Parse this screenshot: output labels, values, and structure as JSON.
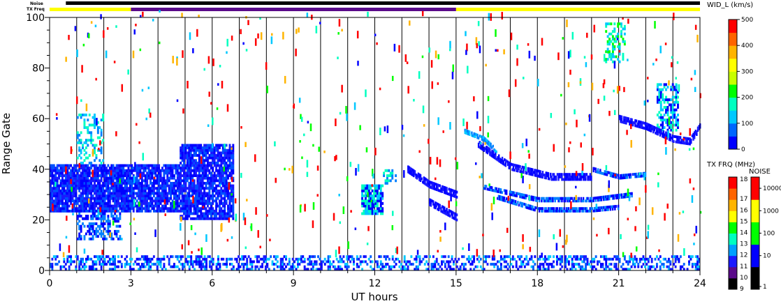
{
  "chart_data": {
    "type": "scatter",
    "description_free": true,
    "xlabel": "UT hours",
    "ylabel": "Range Gate",
    "xlim": [
      0,
      24
    ],
    "ylim": [
      0,
      100
    ],
    "x_ticks": [
      0,
      3,
      6,
      9,
      12,
      15,
      18,
      21,
      24
    ],
    "y_ticks": [
      0,
      20,
      40,
      60,
      80,
      100
    ],
    "x_minor_every": 1,
    "vertical_time_lines_every_hours": 1,
    "strips": {
      "noise_label": "Noise",
      "txfreq_label": "TX Freq",
      "txfreq_segments": [
        {
          "from": 0,
          "to": 3,
          "color": "#ffff00"
        },
        {
          "from": 3,
          "to": 15,
          "color": "#5a0a8a"
        },
        {
          "from": 15,
          "to": 24,
          "color": "#ffff00"
        }
      ],
      "noise_segments": [
        {
          "from": 0,
          "to": 0.6,
          "color": "#ffffff"
        },
        {
          "from": 0.6,
          "to": 24,
          "color": "#000000"
        }
      ]
    },
    "width_colorbar": {
      "title": "WID_L (km/s)",
      "min": 0,
      "max": 500,
      "ticks": [
        0,
        100,
        200,
        300,
        400,
        500
      ],
      "colors": [
        "#0000ff",
        "#0066ff",
        "#00c8ff",
        "#00ffc0",
        "#00ff00",
        "#c8ff00",
        "#ffff00",
        "#ffb400",
        "#ff6400",
        "#ff0000"
      ]
    },
    "txfreq_colorbar": {
      "title": "TX FRQ (MHz)",
      "ticks": [
        "9",
        "10",
        "11",
        "12",
        "13",
        "14",
        "15",
        "16",
        "17",
        "18"
      ],
      "colors": [
        "#000000",
        "#5a0a8a",
        "#1a1aff",
        "#00a0ff",
        "#00ffc0",
        "#00ff00",
        "#ffff00",
        "#ffb400",
        "#ff6400",
        "#ff0000"
      ]
    },
    "noise_colorbar": {
      "title": "NOISE",
      "ticks": [
        "1",
        "10",
        "100",
        "1000",
        "10000"
      ],
      "colors": [
        "#000000",
        "#0000ff",
        "#00ff00",
        "#ffff00",
        "#ff0000"
      ]
    },
    "echo_regions": [
      {
        "t0": 0.0,
        "t1": 3.0,
        "g0": 23,
        "g1": 42,
        "density": 0.9,
        "cols": [
          "#0000ff",
          "#1a1aff",
          "#0050ff"
        ]
      },
      {
        "t0": 1.0,
        "t1": 2.6,
        "g0": 12,
        "g1": 24,
        "density": 0.5,
        "cols": [
          "#0000ff",
          "#0080ff"
        ]
      },
      {
        "t0": 1.0,
        "t1": 2.0,
        "g0": 42,
        "g1": 62,
        "density": 0.35,
        "cols": [
          "#00c8ff",
          "#0080ff",
          "#00ffc0"
        ]
      },
      {
        "t0": 3.0,
        "t1": 4.8,
        "g0": 23,
        "g1": 42,
        "density": 0.85,
        "cols": [
          "#0000ff",
          "#1a1aff",
          "#0050ff"
        ]
      },
      {
        "t0": 4.8,
        "t1": 6.8,
        "g0": 20,
        "g1": 50,
        "density": 0.85,
        "cols": [
          "#0000ff",
          "#1a1aff",
          "#0050ff"
        ]
      },
      {
        "t0": 11.5,
        "t1": 12.3,
        "g0": 22,
        "g1": 34,
        "density": 0.8,
        "cols": [
          "#0000ff",
          "#00c8ff",
          "#00ffc0"
        ]
      },
      {
        "t0": 12.3,
        "t1": 12.8,
        "g0": 34,
        "g1": 40,
        "density": 0.5,
        "cols": [
          "#0080ff",
          "#00ffc0"
        ]
      },
      {
        "t0": 0.0,
        "t1": 24.0,
        "g0": 0,
        "g1": 6,
        "density": 0.45,
        "cols": [
          "#0000ff",
          "#1a1aff",
          "#0060ff",
          "#00c8ff"
        ]
      },
      {
        "t0": 22.4,
        "t1": 23.2,
        "g0": 55,
        "g1": 74,
        "density": 0.6,
        "cols": [
          "#00c8ff",
          "#0000ff",
          "#00ffc0"
        ]
      },
      {
        "t0": 20.5,
        "t1": 21.2,
        "g0": 82,
        "g1": 98,
        "density": 0.4,
        "cols": [
          "#00ffc0",
          "#00ff00",
          "#00c8ff"
        ]
      }
    ],
    "echo_arcs": [
      {
        "points": [
          [
            13.2,
            40
          ],
          [
            14.0,
            34
          ],
          [
            15.0,
            30
          ]
        ],
        "width": 3,
        "cols": [
          "#0000ff",
          "#1a1aff"
        ]
      },
      {
        "points": [
          [
            14.0,
            27
          ],
          [
            14.5,
            24
          ],
          [
            15.0,
            21
          ]
        ],
        "width": 3,
        "cols": [
          "#0000ff",
          "#1a1aff"
        ]
      },
      {
        "points": [
          [
            15.8,
            50
          ],
          [
            17.0,
            41
          ],
          [
            18.5,
            37
          ],
          [
            20.0,
            37
          ]
        ],
        "width": 3,
        "cols": [
          "#0000ff",
          "#1a1aff"
        ]
      },
      {
        "points": [
          [
            16.0,
            33
          ],
          [
            18.0,
            28
          ],
          [
            20.0,
            28
          ],
          [
            21.5,
            30
          ]
        ],
        "width": 2,
        "cols": [
          "#0000ff",
          "#0080ff"
        ]
      },
      {
        "points": [
          [
            16.5,
            29
          ],
          [
            18.0,
            24
          ],
          [
            20.0,
            24
          ],
          [
            21.0,
            25
          ]
        ],
        "width": 2,
        "cols": [
          "#0000ff",
          "#0080ff"
        ]
      },
      {
        "points": [
          [
            20.0,
            40
          ],
          [
            21.0,
            37
          ],
          [
            22.0,
            38
          ]
        ],
        "width": 2,
        "cols": [
          "#0000ff",
          "#0080ff"
        ]
      },
      {
        "points": [
          [
            21.0,
            60
          ],
          [
            22.0,
            57
          ],
          [
            23.0,
            52
          ],
          [
            23.6,
            51
          ],
          [
            24.0,
            57
          ]
        ],
        "width": 3,
        "cols": [
          "#0000ff",
          "#1a1aff"
        ]
      },
      {
        "points": [
          [
            15.3,
            55
          ],
          [
            16.0,
            52
          ],
          [
            16.5,
            47
          ]
        ],
        "width": 2,
        "cols": [
          "#00c8ff",
          "#0080ff"
        ]
      }
    ],
    "noise_scatter_count": 520
  }
}
